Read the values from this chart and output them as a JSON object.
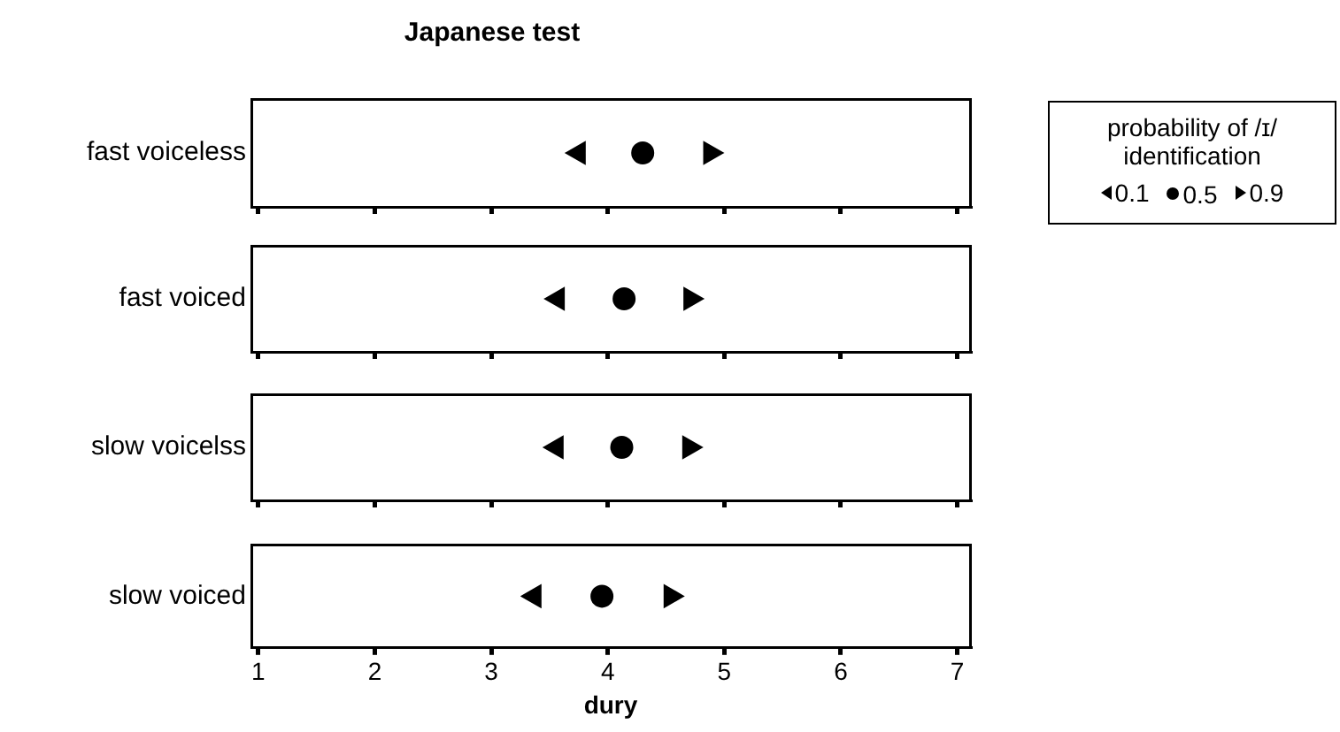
{
  "chart_data": [
    {
      "type": "scatter",
      "title": "Japanese test",
      "legend_title": "probability of /ɪ/ identification",
      "legend": "right",
      "grid": false,
      "orientation": "horizontal",
      "tick_labels": "y",
      "categories": [
        "fast voiceless"
      ],
      "xlim": [
        0.94,
        7.11
      ],
      "xticks": [
        1,
        2,
        3,
        4,
        5,
        6,
        7
      ],
      "series": [
        {
          "name": "0.1",
          "color": "#000000",
          "marker": "triangle-left",
          "values": [
            3.75
          ]
        },
        {
          "name": "0.5",
          "color": "#000000",
          "marker": "circle",
          "values": [
            4.3
          ]
        },
        {
          "name": "0.9",
          "color": "#000000",
          "marker": "triangle-right",
          "values": [
            4.88
          ]
        }
      ]
    },
    {
      "type": "scatter",
      "grid": false,
      "orientation": "horizontal",
      "tick_labels": "y",
      "categories": [
        "fast voiced"
      ],
      "xlim": [
        0.94,
        7.11
      ],
      "xticks": [
        1,
        2,
        3,
        4,
        5,
        6,
        7
      ],
      "series": [
        {
          "color": "#000000",
          "marker": "triangle-left",
          "values": [
            3.57
          ]
        },
        {
          "color": "#000000",
          "marker": "circle",
          "values": [
            4.14
          ]
        },
        {
          "color": "#000000",
          "marker": "triangle-right",
          "values": [
            4.71
          ]
        }
      ]
    },
    {
      "type": "scatter",
      "grid": false,
      "orientation": "horizontal",
      "tick_labels": "y",
      "categories": [
        "slow voicelss"
      ],
      "xlim": [
        0.94,
        7.11
      ],
      "xticks": [
        1,
        2,
        3,
        4,
        5,
        6,
        7
      ],
      "series": [
        {
          "color": "#000000",
          "marker": "triangle-left",
          "values": [
            3.56
          ]
        },
        {
          "color": "#000000",
          "marker": "circle",
          "values": [
            4.12
          ]
        },
        {
          "color": "#000000",
          "marker": "triangle-right",
          "values": [
            4.7
          ]
        }
      ]
    },
    {
      "type": "scatter",
      "xlabel": "dury",
      "grid": false,
      "orientation": "horizontal",
      "categories": [
        "slow voiced"
      ],
      "xlim": [
        0.94,
        7.11
      ],
      "xticks": [
        1,
        2,
        3,
        4,
        5,
        6,
        7
      ],
      "series": [
        {
          "color": "#000000",
          "marker": "triangle-left",
          "values": [
            3.37
          ]
        },
        {
          "color": "#000000",
          "marker": "circle",
          "values": [
            3.95
          ]
        },
        {
          "color": "#000000",
          "marker": "triangle-right",
          "values": [
            4.54
          ]
        }
      ]
    }
  ]
}
